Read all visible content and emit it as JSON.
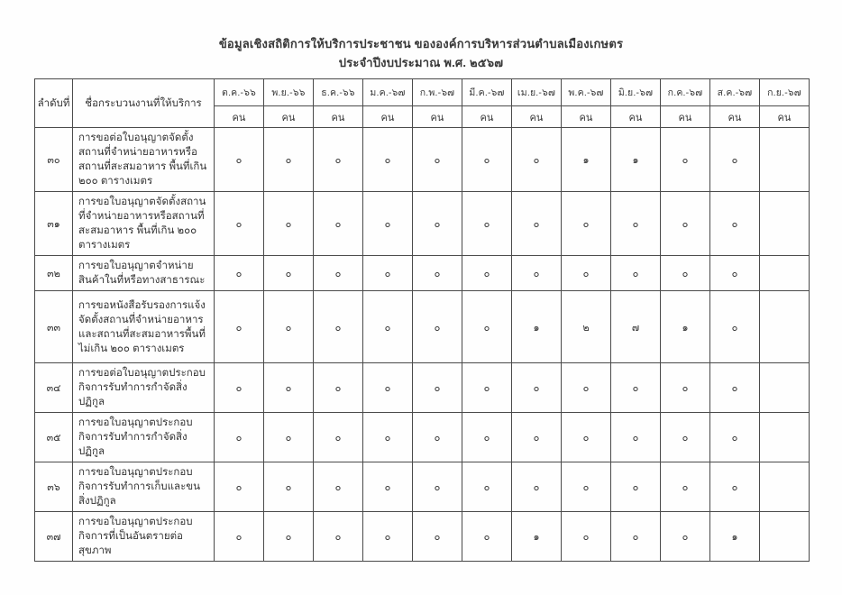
{
  "page": {
    "title_line1": "ข้อมูลเชิงสถิติการให้บริการประชาชน ขององค์การบริหารส่วนตำบลเมืองเกษตร",
    "title_line2": "ประจำปีงบประมาณ พ.ศ. ๒๕๖๗"
  },
  "table": {
    "col_no_header": "ลำดับที่",
    "col_name_header": "ชื่อกระบวนงานที่ให้บริการ",
    "unit_label": "คน",
    "months": [
      "ต.ค.-๖๖",
      "พ.ย.-๖๖",
      "ธ.ค.-๖๖",
      "ม.ค.-๖๗",
      "ก.พ.-๖๗",
      "มี.ค.-๖๗",
      "เม.ย.-๖๗",
      "พ.ค.-๖๗",
      "มิ.ย.-๖๗",
      "ก.ค.-๖๗",
      "ส.ค.-๖๗",
      "ก.ย.-๖๗"
    ],
    "rows": [
      {
        "no": "๓๐",
        "name": "การขอต่อใบอนุญาตจัดตั้งสถานที่จำหน่ายอาหารหรือสถานที่สะสมอาหาร พื้นที่เกิน ๒๐๐ ตารางเมตร",
        "values": [
          "๐",
          "๐",
          "๐",
          "๐",
          "๐",
          "๐",
          "๐",
          "๑",
          "๑",
          "๐",
          "๐",
          ""
        ]
      },
      {
        "no": "๓๑",
        "name": "การขอใบอนุญาตจัดตั้งสถานที่จำหน่ายอาหารหรือสถานที่สะสมอาหาร พื้นที่เกิน ๒๐๐ ตารางเมตร",
        "values": [
          "๐",
          "๐",
          "๐",
          "๐",
          "๐",
          "๐",
          "๐",
          "๐",
          "๐",
          "๐",
          "๐",
          ""
        ]
      },
      {
        "no": "๓๒",
        "name": "การขอใบอนุญาตจำหน่ายสินค้าในที่หรือทางสาธารณะ",
        "values": [
          "๐",
          "๐",
          "๐",
          "๐",
          "๐",
          "๐",
          "๐",
          "๐",
          "๐",
          "๐",
          "๐",
          ""
        ]
      },
      {
        "no": "๓๓",
        "name": "การขอหนังสือรับรองการแจ้งจัดตั้งสถานที่จำหน่ายอาหารและสถานที่สะสมอาหารพื้นที่ไม่เกิน ๒๐๐ ตารางเมตร",
        "values": [
          "๐",
          "๐",
          "๐",
          "๐",
          "๐",
          "๐",
          "๑",
          "๒",
          "๗",
          "๑",
          "๐",
          ""
        ]
      },
      {
        "no": "๓๔",
        "name": "การขอต่อใบอนุญาตประกอบกิจการรับทำการกำจัดสิ่งปฏิกูล",
        "values": [
          "๐",
          "๐",
          "๐",
          "๐",
          "๐",
          "๐",
          "๐",
          "๐",
          "๐",
          "๐",
          "๐",
          ""
        ]
      },
      {
        "no": "๓๕",
        "name": "การขอใบอนุญาตประกอบกิจการรับทำการกำจัดสิ่งปฏิกูล",
        "values": [
          "๐",
          "๐",
          "๐",
          "๐",
          "๐",
          "๐",
          "๐",
          "๐",
          "๐",
          "๐",
          "๐",
          ""
        ]
      },
      {
        "no": "๓๖",
        "name": "การขอใบอนุญาตประกอบกิจการรับทำการเก็บและขนสิ่งปฏิกูล",
        "values": [
          "๐",
          "๐",
          "๐",
          "๐",
          "๐",
          "๐",
          "๐",
          "๐",
          "๐",
          "๐",
          "๐",
          ""
        ]
      },
      {
        "no": "๓๗",
        "name": "การขอใบอนุญาตประกอบกิจการที่เป็นอันตรายต่อสุขภาพ",
        "values": [
          "๐",
          "๐",
          "๐",
          "๐",
          "๐",
          "๐",
          "๑",
          "๐",
          "๐",
          "๐",
          "๑",
          ""
        ]
      }
    ]
  }
}
